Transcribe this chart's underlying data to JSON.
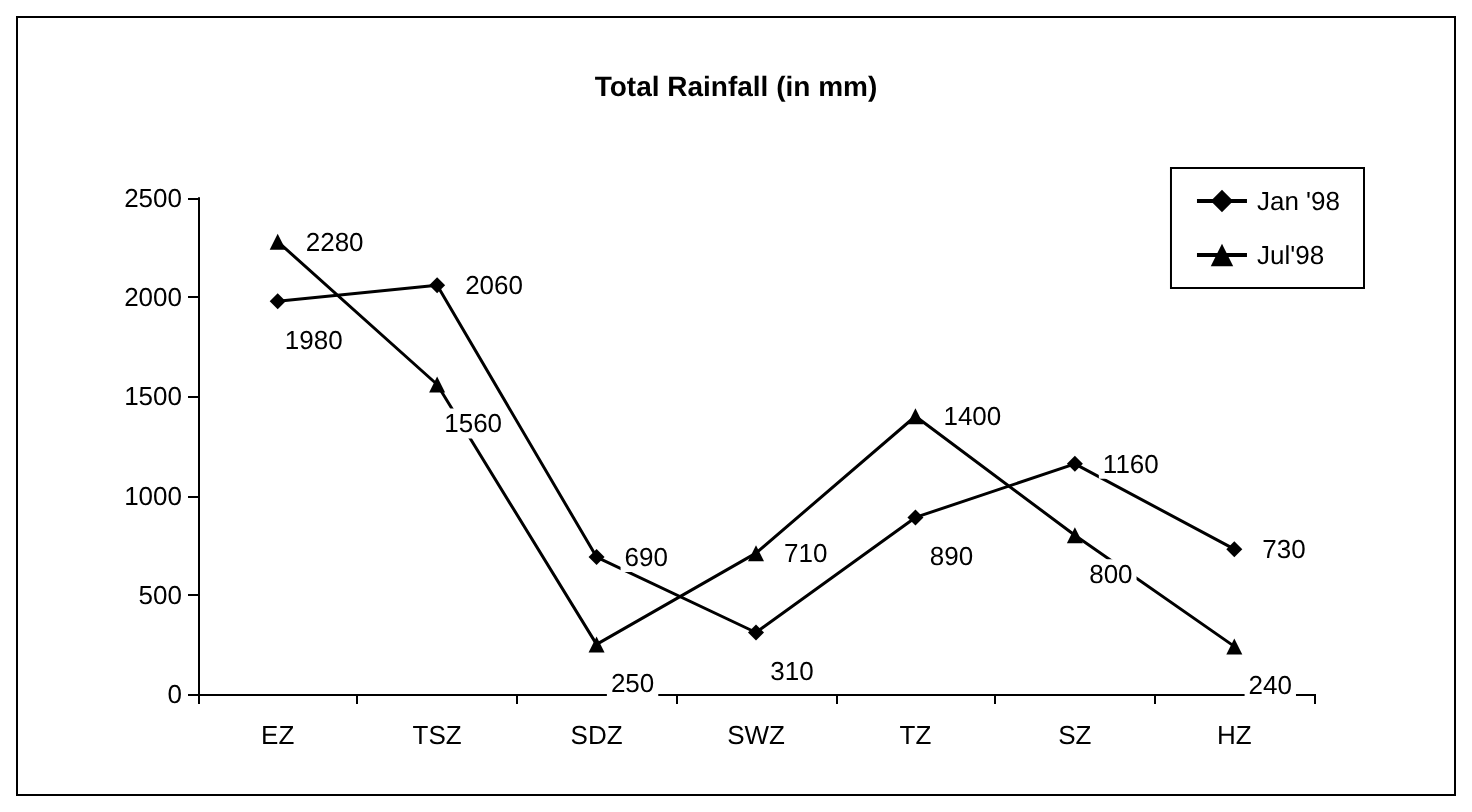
{
  "chart_data": {
    "type": "line",
    "title": "Total Rainfall (in mm)",
    "categories": [
      "EZ",
      "TSZ",
      "SDZ",
      "SWZ",
      "TZ",
      "SZ",
      "HZ"
    ],
    "series": [
      {
        "name": "Jan '98",
        "color": "#000000",
        "marker": "diamond",
        "values": [
          1980,
          2060,
          690,
          310,
          890,
          1160,
          730
        ]
      },
      {
        "name": "Jul'98",
        "color": "#000000",
        "marker": "triangle",
        "values": [
          2280,
          1560,
          250,
          710,
          1400,
          800,
          240
        ]
      }
    ],
    "ylim": [
      0,
      2500
    ],
    "yticks": [
      0,
      500,
      1000,
      1500,
      2000,
      2500
    ],
    "grid": false,
    "legend": "top right",
    "data_labels": true,
    "line_style": "solid"
  }
}
